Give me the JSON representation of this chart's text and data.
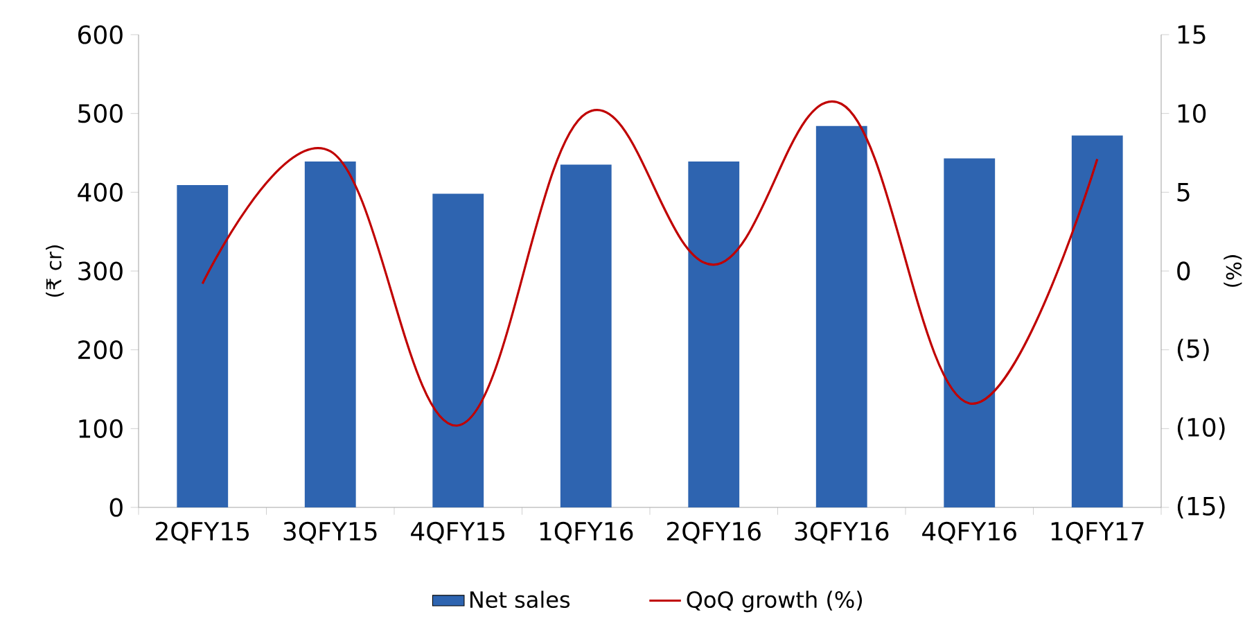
{
  "chart_data": {
    "type": "bar",
    "ylabel": "(₹ cr)",
    "y2label": "(%)",
    "categories": [
      "2QFY15",
      "3QFY15",
      "4QFY15",
      "1QFY16",
      "2QFY16",
      "3QFY16",
      "4QFY16",
      "1QFY17"
    ],
    "series": [
      {
        "name": "Net sales",
        "color": "#2e64b0",
        "values": [
          409,
          439,
          398,
          435,
          439,
          484,
          443,
          472
        ]
      },
      {
        "name": "QoQ growth (%)",
        "type": "line",
        "axis": "y2",
        "color": "#c00000",
        "line_style": "solid",
        "values": [
          -0.8,
          7.6,
          -9.8,
          10.0,
          0.4,
          10.6,
          -8.4,
          7.1
        ]
      }
    ],
    "ylim": [
      0,
      600
    ],
    "yticks": [
      0,
      100,
      200,
      300,
      400,
      500,
      600
    ],
    "y2lim": [
      -15,
      15
    ],
    "y2ticks": [
      {
        "value": -15,
        "label": "(15)"
      },
      {
        "value": -10,
        "label": "(10)"
      },
      {
        "value": -5,
        "label": "(5)"
      },
      0,
      5,
      10,
      15
    ],
    "legend": "bottom"
  }
}
